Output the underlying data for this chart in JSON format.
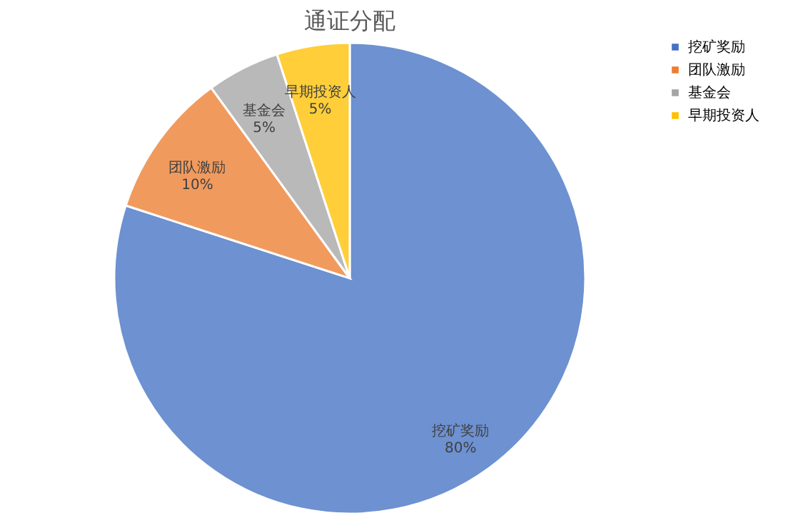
{
  "chart_data": {
    "type": "pie",
    "title": "通证分配",
    "categories": [
      "挖矿奖励",
      "团队激励",
      "基金会",
      "早期投资人"
    ],
    "values": [
      80,
      10,
      5,
      5
    ],
    "value_labels": [
      "80%",
      "10%",
      "5%",
      "5%"
    ],
    "colors": [
      "#4472c4",
      "#ed7d31",
      "#a5a5a5",
      "#ffc000"
    ],
    "legend": "right"
  }
}
